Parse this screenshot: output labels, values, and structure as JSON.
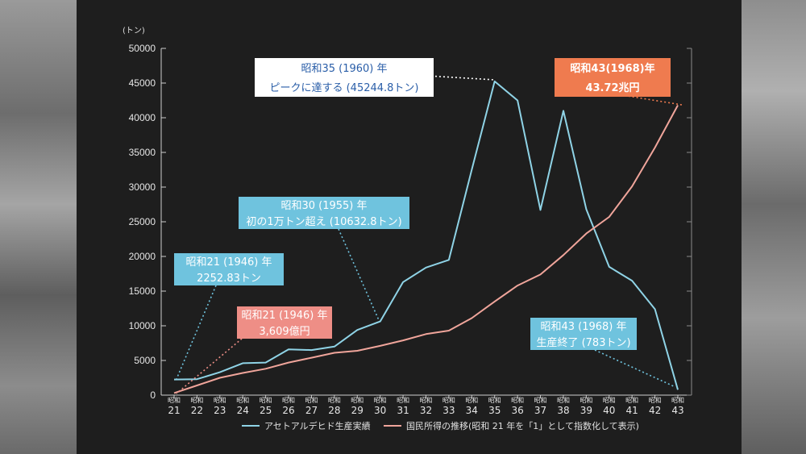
{
  "chart_data": {
    "type": "line",
    "unit_label": "(トン)",
    "ylim": [
      0,
      50000
    ],
    "yticks": [
      "0",
      "5000",
      "10000",
      "15000",
      "20000",
      "25000",
      "30000",
      "35000",
      "40000",
      "45000",
      "50000"
    ],
    "categories": [
      {
        "era": "昭和",
        "num": "21"
      },
      {
        "era": "昭和",
        "num": "22"
      },
      {
        "era": "昭和",
        "num": "23"
      },
      {
        "era": "昭和",
        "num": "24"
      },
      {
        "era": "昭和",
        "num": "25"
      },
      {
        "era": "昭和",
        "num": "26"
      },
      {
        "era": "昭和",
        "num": "27"
      },
      {
        "era": "昭和",
        "num": "28"
      },
      {
        "era": "昭和",
        "num": "29"
      },
      {
        "era": "昭和",
        "num": "30"
      },
      {
        "era": "昭和",
        "num": "31"
      },
      {
        "era": "昭和",
        "num": "32"
      },
      {
        "era": "昭和",
        "num": "33"
      },
      {
        "era": "昭和",
        "num": "34"
      },
      {
        "era": "昭和",
        "num": "35"
      },
      {
        "era": "昭和",
        "num": "36"
      },
      {
        "era": "昭和",
        "num": "37"
      },
      {
        "era": "昭和",
        "num": "38"
      },
      {
        "era": "昭和",
        "num": "39"
      },
      {
        "era": "昭和",
        "num": "40"
      },
      {
        "era": "昭和",
        "num": "41"
      },
      {
        "era": "昭和",
        "num": "42"
      },
      {
        "era": "昭和",
        "num": "43"
      }
    ],
    "series": [
      {
        "name": "アセトアルデヒド生産実績",
        "color": "#8fd3e6",
        "values": [
          2252.83,
          2300,
          3300,
          4600,
          4700,
          6600,
          6500,
          7000,
          9400,
          10632.8,
          16300,
          18400,
          19500,
          32500,
          45244.8,
          42500,
          26700,
          41000,
          26800,
          18500,
          16500,
          12400,
          783
        ]
      },
      {
        "name": "国民所得の推移(昭和 21 年を「1」として指数化して表示)",
        "color": "#f0a59b",
        "values": [
          300,
          1400,
          2500,
          3200,
          3800,
          4700,
          5400,
          6100,
          6400,
          7100,
          7900,
          8800,
          9300,
          11100,
          13500,
          15800,
          17400,
          20200,
          23300,
          25700,
          30100,
          35700,
          41800
        ]
      }
    ],
    "grid": false,
    "legend_placement": "bottom"
  },
  "annotations": [
    {
      "id": "peak",
      "lines": [
        "昭和35 (1960) 年",
        "ピークに達する (45244.8トン)"
      ],
      "style": "white"
    },
    {
      "id": "income43",
      "lines": [
        "昭和43(1968)年",
        "43.72兆円"
      ],
      "style": "orange"
    },
    {
      "id": "first10k",
      "lines": [
        "昭和30 (1955) 年",
        "初の1万トン超え (10632.8トン)"
      ],
      "style": "blue"
    },
    {
      "id": "start21",
      "lines": [
        "昭和21 (1946) 年",
        "2252.83トン"
      ],
      "style": "blue"
    },
    {
      "id": "income21",
      "lines": [
        "昭和21 (1946) 年",
        "3,609億円"
      ],
      "style": "pink"
    },
    {
      "id": "end43",
      "lines": [
        "昭和43 (1968) 年",
        "生産終了 (783トン)"
      ],
      "style": "blue"
    }
  ],
  "colors": {
    "panel": "#1e1e1e",
    "axis": "#cfcfcf",
    "callout_blue": "#6fc3de",
    "callout_orange": "#ef7b4f",
    "callout_pink": "#ee8e86",
    "callout_white": "#ffffff"
  }
}
